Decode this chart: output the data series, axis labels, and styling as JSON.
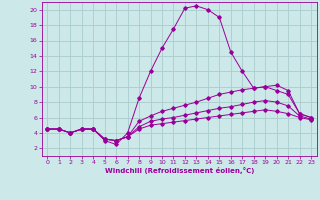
{
  "xlabel": "Windchill (Refroidissement éolien,°C)",
  "bg_color": "#cce8e8",
  "line_color": "#990099",
  "grid_color": "#aacccc",
  "xlim": [
    -0.5,
    23.5
  ],
  "ylim": [
    1,
    21
  ],
  "xticks": [
    0,
    1,
    2,
    3,
    4,
    5,
    6,
    7,
    8,
    9,
    10,
    11,
    12,
    13,
    14,
    15,
    16,
    17,
    18,
    19,
    20,
    21,
    22,
    23
  ],
  "yticks": [
    2,
    4,
    6,
    8,
    10,
    12,
    14,
    16,
    18,
    20
  ],
  "curve1_x": [
    0,
    1,
    2,
    3,
    4,
    5,
    6,
    7,
    8,
    9,
    10,
    11,
    12,
    13,
    14,
    15,
    16,
    17,
    18,
    19,
    20,
    21,
    22,
    23
  ],
  "curve1_y": [
    4.5,
    4.5,
    4.0,
    4.5,
    4.5,
    3.0,
    2.5,
    4.0,
    8.5,
    12.0,
    15.0,
    17.5,
    20.2,
    20.5,
    20.0,
    19.0,
    14.5,
    12.0,
    9.8,
    10.0,
    10.2,
    9.5,
    6.5,
    6.0
  ],
  "curve2_x": [
    0,
    1,
    2,
    3,
    4,
    5,
    6,
    7,
    8,
    9,
    10,
    11,
    12,
    13,
    14,
    15,
    16,
    17,
    18,
    19,
    20,
    21,
    22,
    23
  ],
  "curve2_y": [
    4.5,
    4.5,
    4.0,
    4.5,
    4.5,
    3.2,
    3.0,
    3.5,
    5.5,
    6.2,
    6.8,
    7.2,
    7.6,
    8.0,
    8.5,
    9.0,
    9.3,
    9.6,
    9.8,
    10.0,
    9.5,
    9.0,
    6.5,
    6.0
  ],
  "curve3_x": [
    0,
    1,
    2,
    3,
    4,
    5,
    6,
    7,
    8,
    9,
    10,
    11,
    12,
    13,
    14,
    15,
    16,
    17,
    18,
    19,
    20,
    21,
    22,
    23
  ],
  "curve3_y": [
    4.5,
    4.5,
    4.0,
    4.5,
    4.5,
    3.2,
    3.0,
    3.5,
    4.8,
    5.5,
    5.8,
    6.0,
    6.3,
    6.6,
    6.9,
    7.2,
    7.4,
    7.7,
    8.0,
    8.2,
    8.0,
    7.5,
    6.2,
    5.8
  ],
  "curve4_x": [
    0,
    1,
    2,
    3,
    4,
    5,
    6,
    7,
    8,
    9,
    10,
    11,
    12,
    13,
    14,
    15,
    16,
    17,
    18,
    19,
    20,
    21,
    22,
    23
  ],
  "curve4_y": [
    4.5,
    4.5,
    4.0,
    4.5,
    4.5,
    3.2,
    3.0,
    3.5,
    4.5,
    5.0,
    5.2,
    5.4,
    5.6,
    5.8,
    6.0,
    6.2,
    6.4,
    6.6,
    6.8,
    7.0,
    6.8,
    6.5,
    6.0,
    5.7
  ]
}
